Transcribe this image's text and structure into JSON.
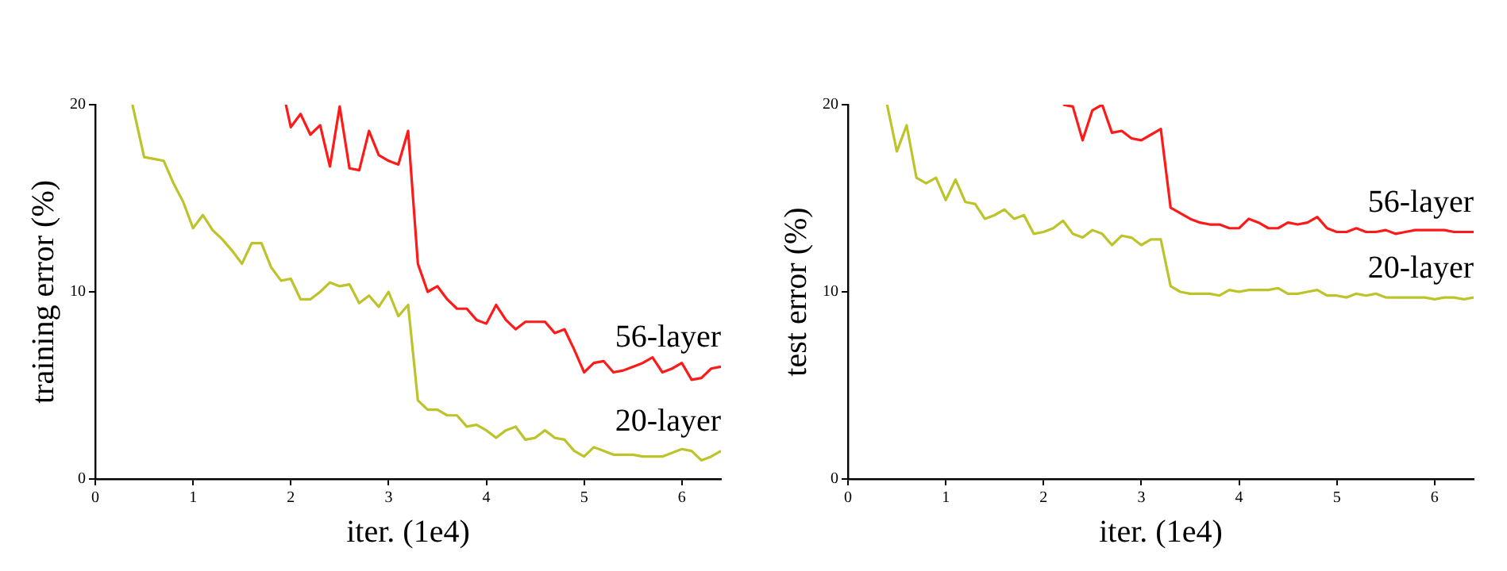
{
  "chart_data": [
    {
      "type": "line",
      "xlabel": "iter. (1e4)",
      "ylabel": "training error (%)",
      "xlim": [
        0,
        6.4
      ],
      "xticks": [
        0,
        1,
        2,
        3,
        4,
        5,
        6
      ],
      "ylim": [
        0,
        20
      ],
      "yticks": [
        0,
        10,
        20
      ],
      "grid": false,
      "marker": "none",
      "line_style": "solid",
      "series": [
        {
          "name": "56-layer",
          "color": "#ff1a1a",
          "x": [
            1.95,
            2.0,
            2.1,
            2.2,
            2.3,
            2.4,
            2.5,
            2.6,
            2.7,
            2.8,
            2.9,
            3.0,
            3.1,
            3.2,
            3.3,
            3.4,
            3.5,
            3.6,
            3.7,
            3.8,
            3.9,
            4.0,
            4.1,
            4.2,
            4.3,
            4.4,
            4.5,
            4.6,
            4.7,
            4.8,
            4.9,
            5.0,
            5.1,
            5.2,
            5.3,
            5.4,
            5.5,
            5.6,
            5.7,
            5.8,
            5.9,
            6.0,
            6.1,
            6.2,
            6.3,
            6.4
          ],
          "values": [
            20,
            18.8,
            19.5,
            18.4,
            18.9,
            16.7,
            19.9,
            16.6,
            16.5,
            18.6,
            17.3,
            17.0,
            16.8,
            18.6,
            11.5,
            10.0,
            10.3,
            9.6,
            9.1,
            9.1,
            8.5,
            8.3,
            9.3,
            8.5,
            8.0,
            8.4,
            8.4,
            8.4,
            7.8,
            8.0,
            6.9,
            5.7,
            6.2,
            6.3,
            5.7,
            5.8,
            6.0,
            6.2,
            6.5,
            5.7,
            5.9,
            6.2,
            5.3,
            5.4,
            5.9,
            6.0
          ]
        },
        {
          "name": "20-layer",
          "color": "#bcc42a",
          "x": [
            0.38,
            0.5,
            0.6,
            0.7,
            0.8,
            0.9,
            1.0,
            1.1,
            1.2,
            1.3,
            1.4,
            1.5,
            1.6,
            1.7,
            1.8,
            1.9,
            2.0,
            2.1,
            2.2,
            2.3,
            2.4,
            2.5,
            2.6,
            2.7,
            2.8,
            2.9,
            3.0,
            3.1,
            3.2,
            3.3,
            3.4,
            3.5,
            3.6,
            3.7,
            3.8,
            3.9,
            4.0,
            4.1,
            4.2,
            4.3,
            4.4,
            4.5,
            4.6,
            4.7,
            4.8,
            4.9,
            5.0,
            5.1,
            5.2,
            5.3,
            5.4,
            5.5,
            5.6,
            5.7,
            5.8,
            5.9,
            6.0,
            6.1,
            6.2,
            6.3,
            6.4
          ],
          "values": [
            20,
            17.2,
            17.1,
            17.0,
            15.8,
            14.8,
            13.4,
            14.1,
            13.3,
            12.8,
            12.2,
            11.5,
            12.6,
            12.6,
            11.3,
            10.6,
            10.7,
            9.6,
            9.6,
            10.0,
            10.5,
            10.3,
            10.4,
            9.4,
            9.8,
            9.2,
            10.0,
            8.7,
            9.3,
            4.2,
            3.7,
            3.7,
            3.4,
            3.4,
            2.8,
            2.9,
            2.6,
            2.2,
            2.6,
            2.8,
            2.1,
            2.2,
            2.6,
            2.2,
            2.1,
            1.5,
            1.2,
            1.7,
            1.5,
            1.3,
            1.3,
            1.3,
            1.2,
            1.2,
            1.2,
            1.4,
            1.6,
            1.5,
            1.0,
            1.2,
            1.5
          ]
        }
      ]
    },
    {
      "type": "line",
      "xlabel": "iter. (1e4)",
      "ylabel": "test error (%)",
      "xlim": [
        0,
        6.4
      ],
      "xticks": [
        0,
        1,
        2,
        3,
        4,
        5,
        6
      ],
      "ylim": [
        0,
        20
      ],
      "yticks": [
        0,
        10,
        20
      ],
      "grid": false,
      "marker": "none",
      "line_style": "solid",
      "series": [
        {
          "name": "56-layer",
          "color": "#ff1a1a",
          "x": [
            2.2,
            2.3,
            2.4,
            2.5,
            2.6,
            2.7,
            2.8,
            2.9,
            3.0,
            3.1,
            3.2,
            3.3,
            3.4,
            3.5,
            3.6,
            3.7,
            3.8,
            3.9,
            4.0,
            4.1,
            4.2,
            4.3,
            4.4,
            4.5,
            4.6,
            4.7,
            4.8,
            4.9,
            5.0,
            5.1,
            5.2,
            5.3,
            5.4,
            5.5,
            5.6,
            5.7,
            5.8,
            5.9,
            6.0,
            6.1,
            6.2,
            6.3,
            6.4
          ],
          "values": [
            20,
            19.9,
            18.1,
            19.7,
            20.0,
            18.5,
            18.6,
            18.2,
            18.1,
            18.4,
            18.7,
            14.5,
            14.2,
            13.9,
            13.7,
            13.6,
            13.6,
            13.4,
            13.4,
            13.9,
            13.7,
            13.4,
            13.4,
            13.7,
            13.6,
            13.7,
            14.0,
            13.4,
            13.2,
            13.2,
            13.4,
            13.2,
            13.2,
            13.3,
            13.1,
            13.2,
            13.3,
            13.3,
            13.3,
            13.3,
            13.2,
            13.2,
            13.2
          ]
        },
        {
          "name": "20-layer",
          "color": "#bcc42a",
          "x": [
            0.4,
            0.5,
            0.6,
            0.7,
            0.8,
            0.9,
            1.0,
            1.1,
            1.2,
            1.3,
            1.4,
            1.5,
            1.6,
            1.7,
            1.8,
            1.9,
            2.0,
            2.1,
            2.2,
            2.3,
            2.4,
            2.5,
            2.6,
            2.7,
            2.8,
            2.9,
            3.0,
            3.1,
            3.2,
            3.3,
            3.4,
            3.5,
            3.6,
            3.7,
            3.8,
            3.9,
            4.0,
            4.1,
            4.2,
            4.3,
            4.4,
            4.5,
            4.6,
            4.7,
            4.8,
            4.9,
            5.0,
            5.1,
            5.2,
            5.3,
            5.4,
            5.5,
            5.6,
            5.7,
            5.8,
            5.9,
            6.0,
            6.1,
            6.2,
            6.3,
            6.4
          ],
          "values": [
            20,
            17.5,
            18.9,
            16.1,
            15.8,
            16.1,
            14.9,
            16.0,
            14.8,
            14.7,
            13.9,
            14.1,
            14.4,
            13.9,
            14.1,
            13.1,
            13.2,
            13.4,
            13.8,
            13.1,
            12.9,
            13.3,
            13.1,
            12.5,
            13.0,
            12.9,
            12.5,
            12.8,
            12.8,
            10.3,
            10.0,
            9.9,
            9.9,
            9.9,
            9.8,
            10.1,
            10.0,
            10.1,
            10.1,
            10.1,
            10.2,
            9.9,
            9.9,
            10.0,
            10.1,
            9.8,
            9.8,
            9.7,
            9.9,
            9.8,
            9.9,
            9.7,
            9.7,
            9.7,
            9.7,
            9.7,
            9.6,
            9.7,
            9.7,
            9.6,
            9.7
          ]
        }
      ]
    }
  ]
}
